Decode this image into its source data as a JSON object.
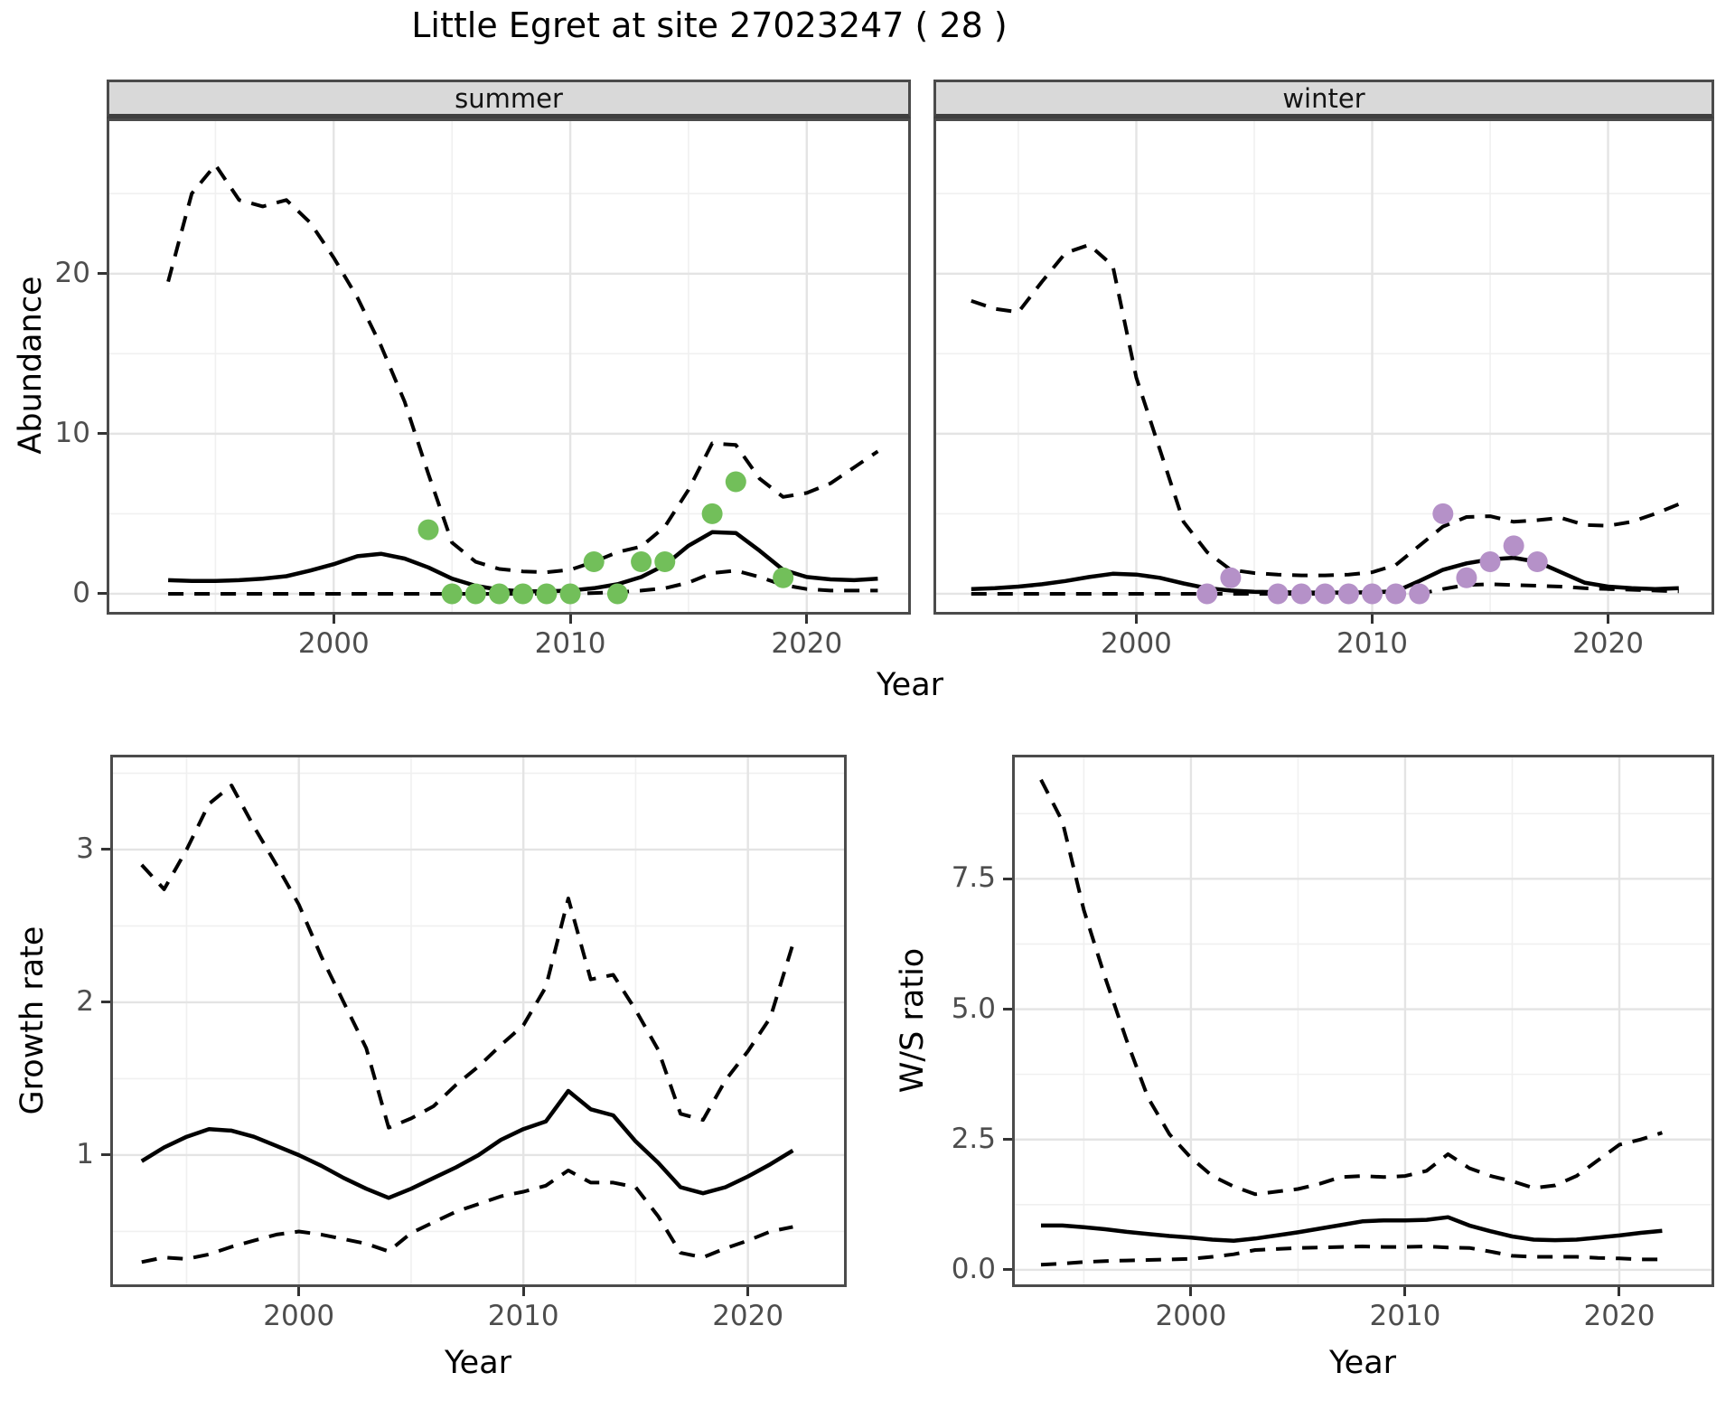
{
  "title": "Little Egret at site 27023247 ( 28 )",
  "facets": {
    "summer_label": "summer",
    "winter_label": "winter"
  },
  "axis_labels": {
    "abundance": "Abundance",
    "year": "Year",
    "growth_rate": "Growth rate",
    "ws_ratio": "W/S ratio"
  },
  "colors": {
    "fit_line": "#000000",
    "ci_line": "#000000",
    "summer_points": "#72BF5A",
    "winter_points": "#B591C8",
    "grid_major": "#e4e4e4",
    "grid_minor": "#f0f0f0",
    "panel_border": "#4b4b4b",
    "strip_bg": "#d9d9d9",
    "axis_text": "#4d4d4d"
  },
  "chart_data": [
    {
      "panel": "abundance-summer",
      "type": "line+scatter",
      "facet_label": "summer",
      "xlabel": "Year",
      "ylabel": "Abundance",
      "xlim": [
        1990.4,
        2024.4
      ],
      "ylim": [
        -1.3,
        29.7
      ],
      "x_ticks": [
        2000,
        2010,
        2020
      ],
      "x_tick_labels": [
        "2000",
        "2010",
        "2020"
      ],
      "x_minor": [
        1995,
        2005,
        2015
      ],
      "y_ticks": [
        0,
        10,
        20
      ],
      "y_tick_labels": [
        "0",
        "10",
        "20"
      ],
      "y_minor": [
        5,
        15,
        25
      ],
      "series": [
        {
          "name": "upper-ci",
          "style": "dashed",
          "x_start": 1993,
          "values": [
            19.5,
            25,
            26.8,
            24.6,
            24.2,
            24.6,
            23.2,
            21,
            18.5,
            15.5,
            12,
            7.5,
            3.2,
            2.0,
            1.55,
            1.4,
            1.35,
            1.5,
            2.0,
            2.6,
            2.95,
            4.2,
            6.5,
            9.4,
            9.3,
            7.2,
            6.05,
            6.3,
            6.9,
            7.9,
            8.9
          ]
        },
        {
          "name": "fit",
          "style": "solid",
          "x_start": 1993,
          "values": [
            0.85,
            0.8,
            0.8,
            0.85,
            0.95,
            1.1,
            1.45,
            1.85,
            2.35,
            2.5,
            2.2,
            1.65,
            0.95,
            0.5,
            0.25,
            0.15,
            0.15,
            0.2,
            0.35,
            0.6,
            1.05,
            1.8,
            3.0,
            3.85,
            3.8,
            2.7,
            1.5,
            1.05,
            0.9,
            0.85,
            0.95
          ]
        },
        {
          "name": "lower-ci",
          "style": "dashed",
          "x_start": 1993,
          "values": [
            0,
            0,
            0,
            0,
            0,
            0,
            0,
            0,
            0,
            0,
            0,
            0,
            0,
            0,
            0,
            0,
            0,
            0,
            0.05,
            0.1,
            0.2,
            0.35,
            0.7,
            1.3,
            1.45,
            1.05,
            0.55,
            0.3,
            0.2,
            0.2,
            0.2
          ]
        }
      ],
      "points": {
        "name": "observed-summer-counts",
        "color": "#72BF5A",
        "x": [
          2004,
          2005,
          2006,
          2007,
          2008,
          2009,
          2010,
          2011,
          2012,
          2013,
          2014,
          2016,
          2017,
          2019
        ],
        "y": [
          4,
          0,
          0,
          0,
          0,
          0,
          0,
          2,
          0,
          2,
          2,
          5,
          7,
          1
        ]
      }
    },
    {
      "panel": "abundance-winter",
      "type": "line+scatter",
      "facet_label": "winter",
      "xlabel": "Year",
      "ylabel": "Abundance",
      "xlim": [
        1991.4,
        2024.5
      ],
      "ylim": [
        -1.3,
        29.7
      ],
      "x_ticks": [
        2000,
        2010,
        2020
      ],
      "x_tick_labels": [
        "2000",
        "2010",
        "2020"
      ],
      "x_minor": [
        1995,
        2005,
        2015
      ],
      "y_ticks": [
        0,
        10,
        20
      ],
      "y_tick_labels": [
        "0",
        "10",
        "20"
      ],
      "y_minor": [
        5,
        15,
        25
      ],
      "series": [
        {
          "name": "upper-ci",
          "style": "dashed",
          "x_start": 1993,
          "values": [
            18.3,
            17.8,
            17.6,
            19.5,
            21.3,
            21.8,
            20.5,
            13.5,
            9.0,
            4.5,
            2.6,
            1.5,
            1.3,
            1.2,
            1.15,
            1.15,
            1.2,
            1.35,
            1.8,
            3.0,
            4.2,
            4.8,
            4.85,
            4.5,
            4.6,
            4.75,
            4.3,
            4.25,
            4.5,
            5.0,
            5.6
          ]
        },
        {
          "name": "fit",
          "style": "solid",
          "x_start": 1993,
          "values": [
            0.3,
            0.35,
            0.45,
            0.6,
            0.8,
            1.05,
            1.25,
            1.2,
            1.0,
            0.65,
            0.35,
            0.2,
            0.13,
            0.1,
            0.08,
            0.08,
            0.08,
            0.1,
            0.15,
            0.8,
            1.5,
            1.9,
            2.15,
            2.25,
            2.0,
            1.35,
            0.7,
            0.45,
            0.35,
            0.3,
            0.35
          ]
        },
        {
          "name": "lower-ci",
          "style": "dashed",
          "x_start": 1993,
          "values": [
            0,
            0,
            0,
            0,
            0,
            0,
            0,
            0,
            0,
            0,
            0,
            0,
            0,
            0,
            0,
            0,
            0,
            0,
            0,
            0,
            0.3,
            0.55,
            0.6,
            0.55,
            0.5,
            0.45,
            0.35,
            0.3,
            0.25,
            0.2,
            0.15
          ]
        }
      ],
      "points": {
        "name": "observed-winter-counts",
        "color": "#B591C8",
        "x": [
          2003,
          2004,
          2006,
          2007,
          2008,
          2009,
          2010,
          2011,
          2012,
          2013,
          2014,
          2015,
          2016,
          2017
        ],
        "y": [
          0,
          1,
          0,
          0,
          0,
          0,
          0,
          0,
          0,
          5,
          1,
          2,
          3,
          2
        ]
      }
    },
    {
      "panel": "growth-rate",
      "type": "line",
      "facet_label": "",
      "xlabel": "Year",
      "ylabel": "Growth rate",
      "xlim": [
        1991.6,
        2024.4
      ],
      "ylim": [
        0.136,
        3.621
      ],
      "x_ticks": [
        2000,
        2010,
        2020
      ],
      "x_tick_labels": [
        "2000",
        "2010",
        "2020"
      ],
      "x_minor": [
        1995,
        2005,
        2015
      ],
      "y_ticks": [
        1,
        2,
        3
      ],
      "y_tick_labels": [
        "1",
        "2",
        "3"
      ],
      "y_minor": [
        0.5,
        1.5,
        2.5,
        3.5
      ],
      "series": [
        {
          "name": "upper-ci",
          "style": "dashed",
          "x_start": 1993,
          "values": [
            2.9,
            2.74,
            3.0,
            3.3,
            3.42,
            3.15,
            2.9,
            2.64,
            2.3,
            2.0,
            1.7,
            1.18,
            1.24,
            1.32,
            1.46,
            1.58,
            1.72,
            1.85,
            2.1,
            2.68,
            2.15,
            2.18,
            1.95,
            1.69,
            1.27,
            1.23,
            1.49,
            1.68,
            1.9,
            2.38
          ]
        },
        {
          "name": "fit",
          "style": "solid",
          "x_start": 1993,
          "values": [
            0.96,
            1.05,
            1.12,
            1.17,
            1.16,
            1.12,
            1.06,
            1.0,
            0.93,
            0.85,
            0.78,
            0.72,
            0.78,
            0.85,
            0.92,
            1.0,
            1.1,
            1.17,
            1.22,
            1.42,
            1.3,
            1.26,
            1.09,
            0.95,
            0.79,
            0.75,
            0.79,
            0.86,
            0.94,
            1.03
          ]
        },
        {
          "name": "lower-ci",
          "style": "dashed",
          "x_start": 1993,
          "values": [
            0.3,
            0.33,
            0.32,
            0.35,
            0.4,
            0.44,
            0.48,
            0.5,
            0.48,
            0.45,
            0.42,
            0.37,
            0.49,
            0.56,
            0.63,
            0.68,
            0.73,
            0.76,
            0.8,
            0.9,
            0.82,
            0.82,
            0.79,
            0.6,
            0.36,
            0.33,
            0.39,
            0.44,
            0.5,
            0.53
          ]
        }
      ],
      "points": null
    },
    {
      "panel": "ws-ratio",
      "type": "line",
      "facet_label": "",
      "xlabel": "Year",
      "ylabel": "W/S ratio",
      "xlim": [
        1991.65,
        2024.43
      ],
      "ylim": [
        -0.33,
        9.88
      ],
      "x_ticks": [
        2000,
        2010,
        2020
      ],
      "x_tick_labels": [
        "2000",
        "2010",
        "2020"
      ],
      "x_minor": [
        1995,
        2005,
        2015
      ],
      "y_ticks": [
        0,
        2.5,
        5.0,
        7.5
      ],
      "y_tick_labels": [
        "0.0",
        "2.5",
        "5.0",
        "7.5"
      ],
      "y_minor": [
        1.25,
        3.75,
        6.25,
        8.75
      ],
      "series": [
        {
          "name": "upper-ci",
          "style": "dashed",
          "x_start": 1993,
          "values": [
            9.4,
            8.6,
            6.9,
            5.6,
            4.4,
            3.3,
            2.6,
            2.15,
            1.8,
            1.6,
            1.45,
            1.5,
            1.55,
            1.65,
            1.78,
            1.8,
            1.78,
            1.8,
            1.9,
            2.22,
            1.95,
            1.8,
            1.7,
            1.57,
            1.62,
            1.8,
            2.1,
            2.4,
            2.5,
            2.63
          ]
        },
        {
          "name": "fit",
          "style": "solid",
          "x_start": 1993,
          "values": [
            0.85,
            0.85,
            0.82,
            0.78,
            0.73,
            0.69,
            0.65,
            0.62,
            0.58,
            0.56,
            0.6,
            0.66,
            0.72,
            0.79,
            0.86,
            0.93,
            0.95,
            0.95,
            0.96,
            1.01,
            0.85,
            0.74,
            0.64,
            0.58,
            0.57,
            0.58,
            0.62,
            0.66,
            0.71,
            0.75
          ]
        },
        {
          "name": "lower-ci",
          "style": "dashed",
          "x_start": 1993,
          "values": [
            0.1,
            0.12,
            0.15,
            0.17,
            0.18,
            0.19,
            0.2,
            0.21,
            0.25,
            0.3,
            0.38,
            0.4,
            0.42,
            0.43,
            0.44,
            0.45,
            0.44,
            0.44,
            0.45,
            0.43,
            0.42,
            0.35,
            0.27,
            0.25,
            0.25,
            0.25,
            0.23,
            0.22,
            0.2,
            0.2
          ]
        }
      ],
      "points": null
    }
  ]
}
